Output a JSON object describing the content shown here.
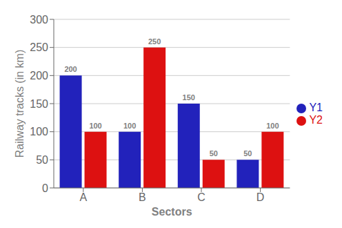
{
  "chart_data": {
    "type": "bar",
    "categories": [
      "A",
      "B",
      "C",
      "D"
    ],
    "series": [
      {
        "name": "Y1",
        "color": "#2222bb",
        "values": [
          200,
          100,
          150,
          50
        ]
      },
      {
        "name": "Y2",
        "color": "#dd1111",
        "values": [
          100,
          250,
          50,
          100
        ]
      }
    ],
    "xlabel": "Sectors",
    "ylabel": "Railway tracks (in km)",
    "ylim": [
      0,
      300
    ],
    "yticks": [
      0,
      50,
      100,
      150,
      200,
      250,
      300
    ],
    "grid": true,
    "legend": "right",
    "data_labels": true
  }
}
